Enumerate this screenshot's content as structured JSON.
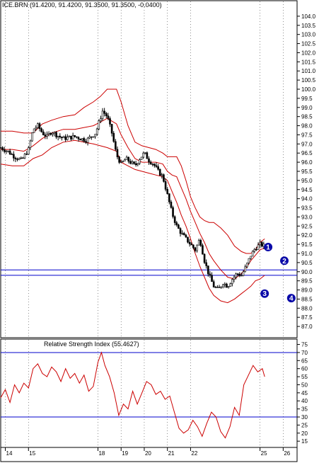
{
  "chart_data": [
    {
      "type": "candlestick",
      "title": "ICE.BRN (91.4200, 91.4200, 91.3500, 91.3500, -0.0400)",
      "ylim": [
        86.5,
        104.5
      ],
      "yticks": [
        87.0,
        87.5,
        88.0,
        88.5,
        89.0,
        89.5,
        90.0,
        90.5,
        91.0,
        91.5,
        92.0,
        92.5,
        93.0,
        93.5,
        94.0,
        94.5,
        95.0,
        95.5,
        96.0,
        96.5,
        97.0,
        97.5,
        98.0,
        98.5,
        99.0,
        99.5,
        100.0,
        100.5,
        101.0,
        101.5,
        102.0,
        102.5,
        103.0,
        103.5,
        104.0
      ],
      "ytick_labels": [
        "87.0",
        "87.5",
        "88.0",
        "88.5",
        "89.0",
        "89.5",
        "90.0",
        "90.5",
        "91.0",
        "91.5",
        "92.0",
        "92.5",
        "93.0",
        "93.5",
        "94.0",
        "94.5",
        "95.0",
        "95.5",
        "96.0",
        "96.5",
        "97.0",
        "97.5",
        "98.0",
        "98.5",
        "99.0",
        "99.5",
        "100.0",
        "100.5",
        "101.0",
        "101.5",
        "102.0",
        "102.5",
        "103.0",
        "103.5",
        "104.0"
      ],
      "xlim": [
        13.8,
        26.6
      ],
      "x_ticks": [
        14,
        15,
        18,
        19,
        20,
        21,
        22,
        25,
        26
      ],
      "x_tick_labels": [
        "14",
        "15",
        "18",
        "19",
        "20",
        "21",
        "22",
        "25",
        "26"
      ],
      "close": {
        "x": [
          13.8,
          14.1,
          14.4,
          14.7,
          15.0,
          15.2,
          15.4,
          15.6,
          15.8,
          16.0,
          16.2,
          16.5,
          17.0,
          17.5,
          17.9,
          18.2,
          18.4,
          18.6,
          18.8,
          19.0,
          19.2,
          19.4,
          19.6,
          19.8,
          20.0,
          20.2,
          20.4,
          20.6,
          20.8,
          21.0,
          21.2,
          21.4,
          21.6,
          21.8,
          22.0,
          22.2,
          22.4,
          22.6,
          22.8,
          23.0,
          23.2,
          23.4,
          23.6,
          23.8,
          24.0,
          24.2,
          24.4,
          24.6,
          24.8,
          25.0,
          25.2
        ],
        "y": [
          96.8,
          96.6,
          96.3,
          96.1,
          96.7,
          97.8,
          98.0,
          97.6,
          97.4,
          97.7,
          97.5,
          97.3,
          97.4,
          97.2,
          97.6,
          98.8,
          98.5,
          97.6,
          96.4,
          95.9,
          96.2,
          96.0,
          95.8,
          96.2,
          96.5,
          96.1,
          95.9,
          95.5,
          95.2,
          94.2,
          93.2,
          92.5,
          92.1,
          91.8,
          91.5,
          91.2,
          91.8,
          90.6,
          89.8,
          89.2,
          89.0,
          89.4,
          89.2,
          89.6,
          89.9,
          89.8,
          90.3,
          90.9,
          91.3,
          91.5,
          91.4
        ]
      },
      "bollinger_upper": {
        "x": [
          13.8,
          14.3,
          14.8,
          15.2,
          15.6,
          16.0,
          16.5,
          17.0,
          17.4,
          17.8,
          18.1,
          18.4,
          18.8,
          19.0,
          19.3,
          19.6,
          19.9,
          20.2,
          20.5,
          20.8,
          21.0,
          21.2,
          21.4,
          21.6,
          21.8,
          22.0,
          22.2,
          22.4,
          22.6,
          22.8,
          23.0,
          23.3,
          23.6,
          23.9,
          24.2,
          24.4,
          24.6,
          24.8,
          25.0,
          25.2
        ],
        "y": [
          97.7,
          97.7,
          97.6,
          97.6,
          98.1,
          98.3,
          98.5,
          98.6,
          99.0,
          99.3,
          99.6,
          100.0,
          100.0,
          99.3,
          98.0,
          97.1,
          96.9,
          96.8,
          96.7,
          96.5,
          96.3,
          96.3,
          96.3,
          95.8,
          95.0,
          94.1,
          93.5,
          93.0,
          92.8,
          92.7,
          92.7,
          92.4,
          92.0,
          91.4,
          91.1,
          91.0,
          91.0,
          91.2,
          91.6,
          91.8
        ]
      },
      "bollinger_middle": {
        "x": [
          13.8,
          14.3,
          14.8,
          15.2,
          15.6,
          16.0,
          16.5,
          17.0,
          17.4,
          17.8,
          18.1,
          18.4,
          18.8,
          19.0,
          19.3,
          19.6,
          19.9,
          20.2,
          20.5,
          20.8,
          21.0,
          21.2,
          21.4,
          21.6,
          21.8,
          22.0,
          22.2,
          22.4,
          22.6,
          22.8,
          23.0,
          23.3,
          23.6,
          23.9,
          24.2,
          24.4,
          24.6,
          24.8,
          25.0,
          25.2
        ],
        "y": [
          96.7,
          96.7,
          96.6,
          96.9,
          97.3,
          97.6,
          97.8,
          97.8,
          97.9,
          98.0,
          98.2,
          98.4,
          98.1,
          97.5,
          96.8,
          96.2,
          96.0,
          96.0,
          96.0,
          95.9,
          95.5,
          95.3,
          95.2,
          94.6,
          94.0,
          93.3,
          92.7,
          92.1,
          91.6,
          91.0,
          90.6,
          90.1,
          89.7,
          89.6,
          89.9,
          90.2,
          90.6,
          90.9,
          91.2,
          91.3
        ]
      },
      "bollinger_lower": {
        "x": [
          13.8,
          14.3,
          14.8,
          15.2,
          15.6,
          16.0,
          16.5,
          17.0,
          17.4,
          17.8,
          18.1,
          18.4,
          18.8,
          19.0,
          19.3,
          19.6,
          19.9,
          20.2,
          20.5,
          20.8,
          21.0,
          21.2,
          21.4,
          21.6,
          21.8,
          22.0,
          22.2,
          22.4,
          22.6,
          22.8,
          23.0,
          23.3,
          23.6,
          23.9,
          24.2,
          24.4,
          24.6,
          24.8,
          25.0,
          25.2
        ],
        "y": [
          95.9,
          95.8,
          95.8,
          96.2,
          96.4,
          96.8,
          97.1,
          97.2,
          97.1,
          97.0,
          96.9,
          96.8,
          96.6,
          96.0,
          95.8,
          95.6,
          95.5,
          95.4,
          95.3,
          95.2,
          95.0,
          94.4,
          93.8,
          93.1,
          92.5,
          91.8,
          91.0,
          90.3,
          89.7,
          89.1,
          88.7,
          88.4,
          88.3,
          88.5,
          88.8,
          89.0,
          89.2,
          89.5,
          89.6,
          89.8
        ]
      },
      "horizontal_lines": [
        90.1,
        89.8
      ],
      "annotations": [
        {
          "label": "1",
          "x": 25.35,
          "y": 91.35
        },
        {
          "label": "2",
          "x": 26.05,
          "y": 90.6
        },
        {
          "label": "3",
          "x": 25.2,
          "y": 88.8
        },
        {
          "label": "4",
          "x": 26.35,
          "y": 88.55
        }
      ],
      "colors": {
        "candles": "#000000",
        "bands": "#cc0000",
        "hlines": "#0000cc",
        "markers": "#0a0aa8",
        "axis": "#000000"
      }
    },
    {
      "type": "line",
      "title": "Relative Strength Index (55.4627)",
      "ylim": [
        12,
        77
      ],
      "yticks": [
        15,
        20,
        25,
        30,
        35,
        40,
        45,
        50,
        55,
        60,
        65,
        70,
        75
      ],
      "ytick_labels": [
        "15",
        "20",
        "25",
        "30",
        "35",
        "40",
        "45",
        "50",
        "55",
        "60",
        "65",
        "70",
        "75"
      ],
      "xlim": [
        13.8,
        26.6
      ],
      "horizontal_lines": [
        70,
        30
      ],
      "series": [
        {
          "x": [
            13.8,
            14.0,
            14.2,
            14.4,
            14.6,
            14.8,
            15.0,
            15.2,
            15.4,
            15.6,
            15.8,
            16.0,
            16.2,
            16.4,
            16.6,
            16.8,
            17.0,
            17.2,
            17.4,
            17.6,
            17.8,
            18.0,
            18.15,
            18.3,
            18.5,
            18.7,
            18.9,
            19.1,
            19.3,
            19.5,
            19.7,
            19.9,
            20.1,
            20.3,
            20.5,
            20.7,
            20.9,
            21.1,
            21.3,
            21.5,
            21.7,
            21.9,
            22.1,
            22.3,
            22.5,
            22.7,
            22.9,
            23.1,
            23.3,
            23.5,
            23.7,
            23.9,
            24.1,
            24.3,
            24.5,
            24.7,
            24.9,
            25.1,
            25.2
          ],
          "y": [
            42,
            47,
            39,
            50,
            45,
            51,
            48,
            60,
            63,
            57,
            55,
            61,
            58,
            52,
            60,
            54,
            57,
            51,
            56,
            46,
            49,
            64,
            70,
            62,
            55,
            45,
            31,
            38,
            35,
            46,
            38,
            45,
            52,
            50,
            44,
            46,
            41,
            43,
            33,
            23,
            20,
            22,
            28,
            24,
            18,
            26,
            33,
            30,
            21,
            17,
            24,
            36,
            31,
            50,
            56,
            62,
            58,
            60,
            55
          ]
        }
      ],
      "colors": {
        "line": "#cc0000",
        "hlines": "#0000cc"
      }
    }
  ]
}
